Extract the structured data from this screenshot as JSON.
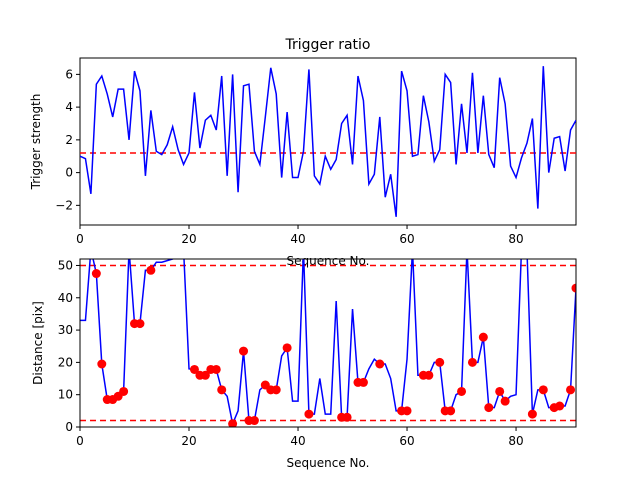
{
  "chart_data": [
    {
      "type": "line",
      "title": "Trigger ratio",
      "xlabel": "Sequence No.",
      "ylabel": "Trigger strength",
      "xlim": [
        0,
        91
      ],
      "ylim": [
        -3.2,
        7.0
      ],
      "xticks": [
        0,
        20,
        40,
        60,
        80
      ],
      "yticks": [
        -2,
        0,
        2,
        4,
        6
      ],
      "threshold": 1.2,
      "colors": {
        "line": "#0000ff",
        "threshold": "#ff0000"
      },
      "series": [
        {
          "x": [
            0,
            1,
            2,
            3,
            4,
            5,
            6,
            7,
            8,
            9,
            10,
            11,
            12,
            13,
            14,
            15,
            16,
            17,
            18,
            19,
            20,
            21,
            22,
            23,
            24,
            25,
            26,
            27,
            28,
            29,
            30,
            31,
            32,
            33,
            34,
            35,
            36,
            37,
            38,
            39,
            40,
            41,
            42,
            43,
            44,
            45,
            46,
            47,
            48,
            49,
            50,
            51,
            52,
            53,
            54,
            55,
            56,
            57,
            58,
            59,
            60,
            61,
            62,
            63,
            64,
            65,
            66,
            67,
            68,
            69,
            70,
            71,
            72,
            73,
            74,
            75,
            76,
            77,
            78,
            79,
            80,
            81,
            82,
            83,
            84,
            85,
            86,
            87,
            88,
            89,
            90,
            91
          ],
          "y": [
            1.0,
            0.85,
            -1.3,
            5.4,
            5.9,
            4.8,
            3.4,
            5.1,
            5.1,
            2.0,
            6.2,
            5.0,
            -0.2,
            3.8,
            1.3,
            1.1,
            1.7,
            2.8,
            1.4,
            0.5,
            1.2,
            4.9,
            1.5,
            3.2,
            3.5,
            2.6,
            5.9,
            -0.2,
            6.0,
            -1.2,
            5.3,
            5.4,
            1.3,
            0.5,
            3.4,
            6.4,
            4.8,
            -0.3,
            3.7,
            -0.3,
            -0.3,
            1.3,
            6.3,
            -0.2,
            -0.7,
            1.0,
            0.2,
            0.8,
            3.0,
            3.5,
            0.5,
            5.9,
            4.4,
            -0.7,
            -0.1,
            3.4,
            -1.5,
            -0.1,
            -2.7,
            6.2,
            5.0,
            1.0,
            1.1,
            4.7,
            3.1,
            0.7,
            1.4,
            6.0,
            5.5,
            0.5,
            4.2,
            1.2,
            6.1,
            1.2,
            4.7,
            1.1,
            0.3,
            5.8,
            4.2,
            0.4,
            -0.3,
            0.9,
            1.8,
            3.3,
            -2.2,
            6.5,
            0.0,
            2.1,
            2.2,
            0.1,
            2.6,
            3.2
          ]
        }
      ]
    },
    {
      "type": "line",
      "title": "",
      "xlabel": "Sequence No.",
      "ylabel": "Distance [pix]",
      "xlim": [
        0,
        91
      ],
      "ylim": [
        0,
        52
      ],
      "xticks": [
        0,
        20,
        40,
        60,
        80
      ],
      "yticks": [
        0,
        10,
        20,
        30,
        40,
        50
      ],
      "thresholds": [
        2,
        50
      ],
      "colors": {
        "line": "#0000ff",
        "markers": "#ff0000",
        "threshold": "#ff0000"
      },
      "series": [
        {
          "x": [
            0,
            1,
            2,
            3,
            4,
            5,
            6,
            7,
            8,
            9,
            10,
            11,
            12,
            13,
            14,
            15,
            16,
            17,
            18,
            19,
            20,
            21,
            22,
            23,
            24,
            25,
            26,
            27,
            28,
            29,
            30,
            31,
            32,
            33,
            34,
            35,
            36,
            37,
            38,
            39,
            40,
            41,
            42,
            43,
            44,
            45,
            46,
            47,
            48,
            49,
            50,
            51,
            52,
            53,
            54,
            55,
            56,
            57,
            58,
            59,
            60,
            61,
            62,
            63,
            64,
            65,
            66,
            67,
            68,
            69,
            70,
            71,
            72,
            73,
            74,
            75,
            76,
            77,
            78,
            79,
            80,
            81,
            82,
            83,
            84,
            85,
            86,
            87,
            88,
            89,
            90,
            91
          ],
          "y": [
            33,
            33,
            55,
            47.5,
            19.5,
            8.5,
            8.5,
            9.5,
            11,
            55,
            32,
            32,
            48.5,
            48.5,
            51,
            51,
            51.5,
            52,
            55,
            55,
            18,
            17.8,
            16,
            16,
            17.8,
            17.8,
            11.5,
            9.5,
            1,
            5,
            23.5,
            2,
            2,
            11.5,
            13,
            11.5,
            11.5,
            22,
            24.5,
            8,
            8,
            55,
            4,
            4,
            15,
            4,
            4,
            39,
            3,
            3,
            36.5,
            13.8,
            13.8,
            18,
            21,
            19.5,
            19.5,
            15,
            5,
            5,
            21,
            55,
            16,
            16,
            16,
            20,
            20,
            5,
            5,
            10,
            11,
            55,
            20,
            20,
            27.8,
            6,
            6,
            11,
            8,
            9.5,
            10,
            55,
            55,
            4,
            11.5,
            11.5,
            6,
            6,
            6.5,
            6.5,
            11.5,
            43
          ]
        },
        {
          "name": "",
          "marker_x": [
            3,
            4,
            5,
            6,
            7,
            8,
            10,
            11,
            13,
            21,
            22,
            23,
            24,
            25,
            26,
            28,
            30,
            31,
            32,
            34,
            35,
            36,
            38,
            42,
            48,
            49,
            51,
            52,
            55,
            59,
            60,
            63,
            64,
            66,
            67,
            68,
            70,
            72,
            74,
            75,
            77,
            78,
            83,
            85,
            87,
            88,
            90,
            91
          ],
          "marker_y": [
            47.5,
            19.5,
            8.5,
            8.5,
            9.5,
            11,
            32,
            32,
            48.5,
            17.8,
            16,
            16,
            17.8,
            17.8,
            11.5,
            1,
            23.5,
            2,
            2,
            13,
            11.5,
            11.5,
            24.5,
            4,
            3,
            3,
            13.8,
            13.8,
            19.5,
            5,
            5,
            16,
            16,
            20,
            5,
            5,
            11,
            20,
            27.8,
            6,
            11,
            8,
            4,
            11.5,
            6,
            6.5,
            11.5,
            43
          ]
        }
      ]
    }
  ]
}
